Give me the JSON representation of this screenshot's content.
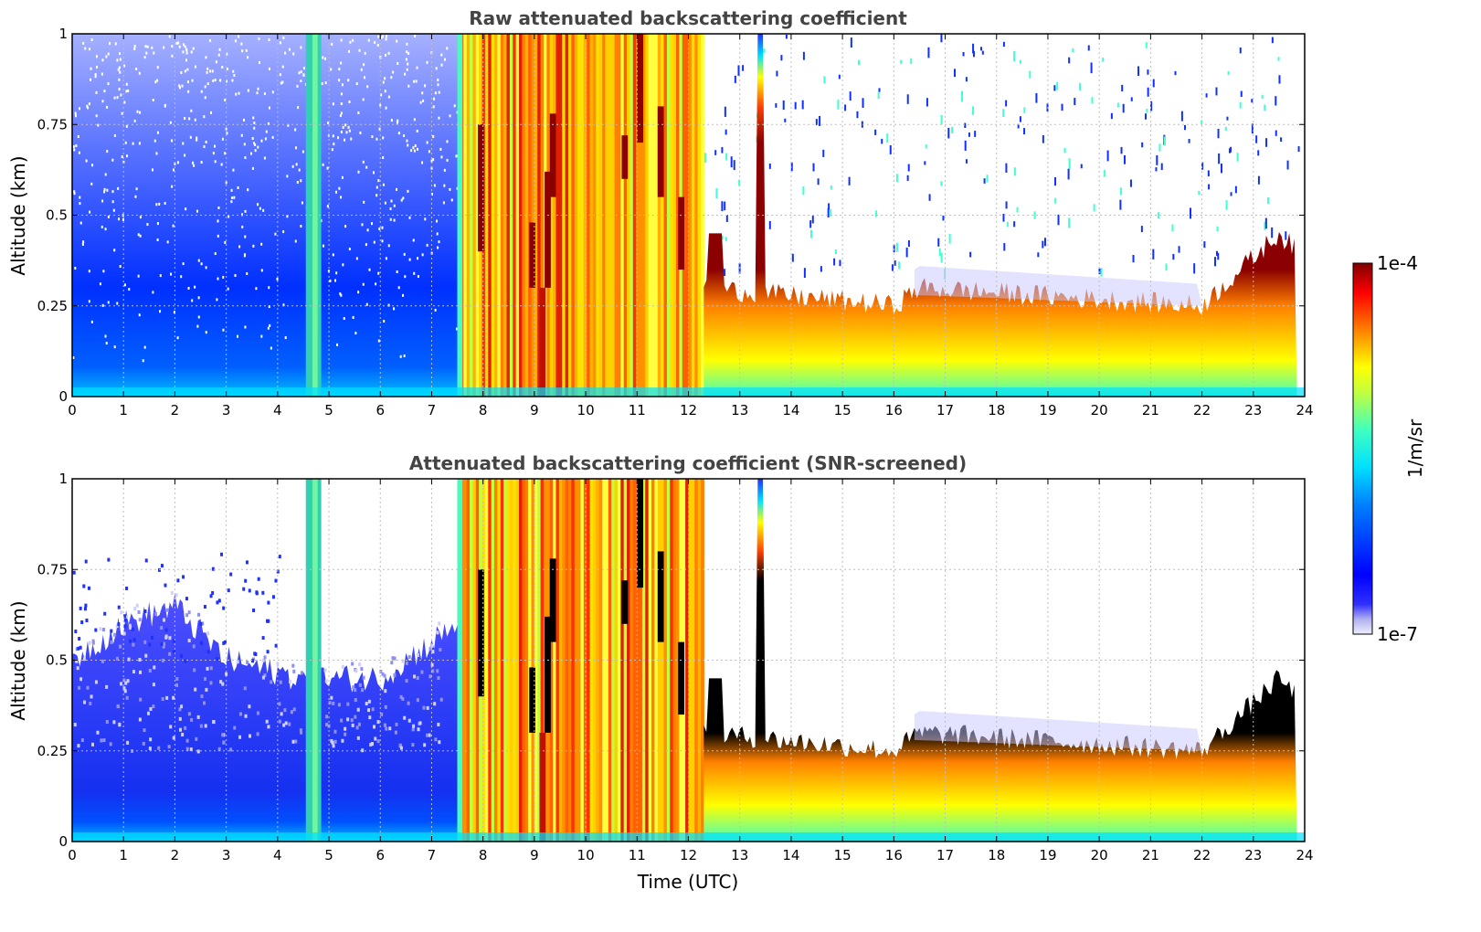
{
  "chart_data": [
    {
      "type": "heatmap",
      "title": "Raw attenuated backscattering coefficient",
      "xlabel": "",
      "ylabel": "Altitude (km)",
      "xlim": [
        0,
        24
      ],
      "ylim": [
        0,
        1
      ],
      "x_ticks": [
        "0",
        "1",
        "2",
        "3",
        "4",
        "5",
        "6",
        "7",
        "8",
        "9",
        "10",
        "11",
        "12",
        "13",
        "14",
        "15",
        "16",
        "17",
        "18",
        "19",
        "20",
        "21",
        "22",
        "23",
        "24"
      ],
      "y_ticks": [
        "0",
        "0.25",
        "0.5",
        "0.75",
        "1"
      ],
      "grid": true,
      "screened": false,
      "features": [
        {
          "name": "noise",
          "x": [
            0,
            7.5
          ],
          "y": [
            0,
            1
          ]
        },
        {
          "name": "fog_column",
          "x": [
            4.55,
            4.85
          ],
          "y": [
            0,
            1
          ]
        },
        {
          "name": "dense_layers",
          "x": [
            7.5,
            12.3
          ],
          "y": [
            0,
            1
          ]
        },
        {
          "name": "stratus_top_km",
          "x": [
            12.3,
            16,
            16.5,
            22,
            23.5,
            23.85
          ],
          "y": [
            0.3,
            0.25,
            0.3,
            0.25,
            0.45,
            0.4
          ]
        }
      ]
    },
    {
      "type": "heatmap",
      "title": "Attenuated backscattering coefficient (SNR-screened)",
      "xlabel": "Time (UTC)",
      "ylabel": "Altitude (km)",
      "xlim": [
        0,
        24
      ],
      "ylim": [
        0,
        1
      ],
      "x_ticks": [
        "0",
        "1",
        "2",
        "3",
        "4",
        "5",
        "6",
        "7",
        "8",
        "9",
        "10",
        "11",
        "12",
        "13",
        "14",
        "15",
        "16",
        "17",
        "18",
        "19",
        "20",
        "21",
        "22",
        "23",
        "24"
      ],
      "y_ticks": [
        "0",
        "0.25",
        "0.5",
        "0.75",
        "1"
      ],
      "grid": true,
      "screened": true,
      "features": [
        {
          "name": "aerosol_layer_top_km",
          "x": [
            0,
            1,
            2,
            3,
            4.5,
            6,
            7.5
          ],
          "y": [
            0.5,
            0.6,
            0.65,
            0.5,
            0.45,
            0.45,
            0.6
          ]
        },
        {
          "name": "fog_column",
          "x": [
            4.55,
            4.85
          ],
          "y": [
            0,
            1
          ]
        },
        {
          "name": "dense_layers",
          "x": [
            7.5,
            12.3
          ],
          "y": [
            0,
            1
          ]
        },
        {
          "name": "stratus_top_km",
          "x": [
            12.3,
            16,
            16.5,
            22,
            23.5,
            23.85
          ],
          "y": [
            0.3,
            0.25,
            0.3,
            0.25,
            0.45,
            0.4
          ]
        }
      ]
    }
  ],
  "colorbar": {
    "label": "1/m/sr",
    "max_label": "1e-4",
    "min_label": "1e-7",
    "colormap": "jet",
    "scale": "log"
  },
  "colors": {
    "title": "#444444",
    "saturated": "#000000",
    "background": "#ffffff"
  }
}
